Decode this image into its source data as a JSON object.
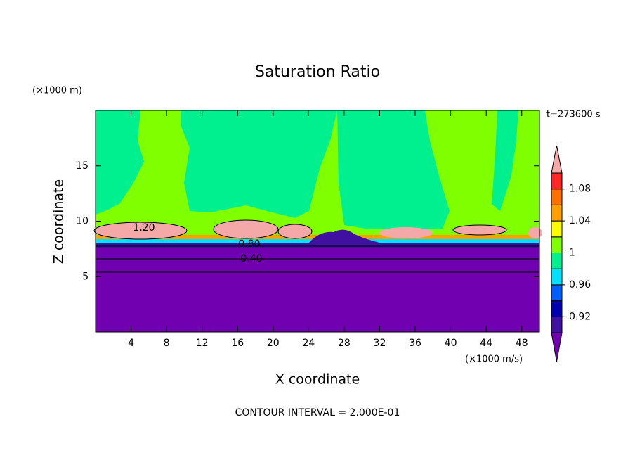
{
  "chart_data": {
    "type": "contour",
    "title": "Saturation Ratio",
    "x_label": "X coordinate",
    "y_label": "Z coordinate",
    "x_unit": "(×1000 m/s)",
    "y_unit": "(×1000 m)",
    "time_label": "t=273600 s",
    "footer": "CONTOUR INTERVAL = 2.000E-01",
    "xlim": [
      0,
      50
    ],
    "ylim": [
      0,
      20
    ],
    "xticks": [
      4,
      8,
      12,
      16,
      20,
      24,
      28,
      32,
      36,
      40,
      44,
      48
    ],
    "yticks": [
      5,
      10,
      15
    ],
    "contour_labels": [
      "1.20",
      "0.80",
      "0.40"
    ],
    "colorbar": {
      "levels": [
        0.9,
        0.92,
        0.94,
        0.96,
        0.98,
        1,
        1.02,
        1.04,
        1.06,
        1.08,
        1.1
      ],
      "colors": [
        "#7000b0",
        "#4010a0",
        "#0000b0",
        "#0060ff",
        "#00e0ff",
        "#00f090",
        "#80ff00",
        "#ffff00",
        "#ffa000",
        "#ff7000",
        "#ff2828",
        "#f4a8a8"
      ],
      "ticks": [
        0.92,
        0.96,
        1,
        1.04,
        1.08
      ]
    }
  }
}
